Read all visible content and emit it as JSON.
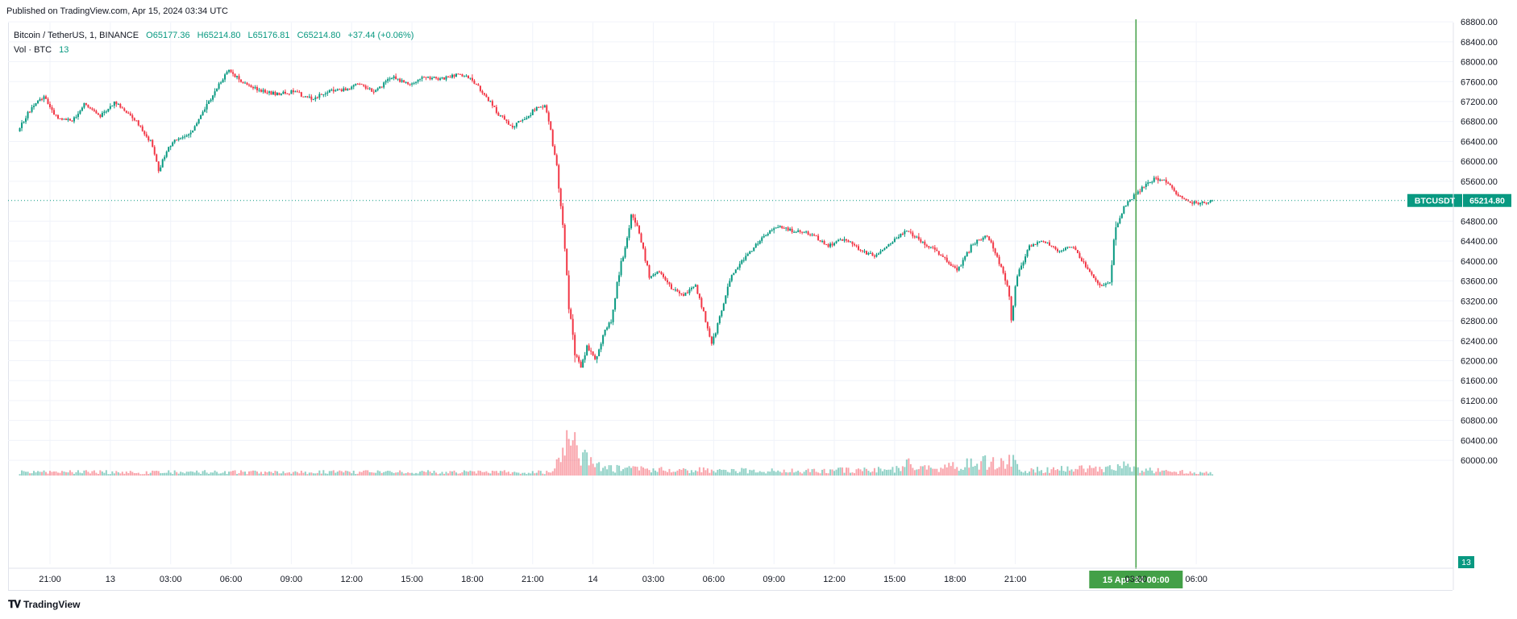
{
  "published": "Published on TradingView.com, Apr 15, 2024 03:34 UTC",
  "legend": {
    "symbol": "Bitcoin / TetherUS, 1, BINANCE",
    "open": "O65177.36",
    "high": "H65214.80",
    "low": "L65176.81",
    "close": "C65214.80",
    "change": "+37.44 (+0.06%)",
    "vol_label": "Vol · BTC",
    "vol_value": "13"
  },
  "price_tag": {
    "symbol": "BTCUSDT",
    "value": "65214.80"
  },
  "volume_tag": "13",
  "crosshair_label": "15 Apr '24   00:00",
  "footer": {
    "brand": "TradingView",
    "logo_icon": "tradingview-logo-icon"
  },
  "colors": {
    "up": "#089981",
    "down": "#f23645",
    "crosshair": "#43a047",
    "grid": "#f0f3fa"
  },
  "chart_data": {
    "type": "candlestick",
    "symbol": "Bitcoin / TetherUS, 1, BINANCE",
    "interval": "1 minute",
    "y_ticks": [
      "68800.00",
      "68400.00",
      "68000.00",
      "67600.00",
      "67200.00",
      "66800.00",
      "66400.00",
      "66000.00",
      "65600.00",
      "64800.00",
      "64400.00",
      "64000.00",
      "63600.00",
      "63200.00",
      "62800.00",
      "62400.00",
      "62000.00",
      "61600.00",
      "61200.00",
      "60800.00",
      "60400.00",
      "60000.00"
    ],
    "ylim": [
      59800,
      68850
    ],
    "x_ticks": [
      "21:00",
      "13",
      "03:00",
      "06:00",
      "09:00",
      "12:00",
      "15:00",
      "18:00",
      "21:00",
      "14",
      "03:00",
      "06:00",
      "09:00",
      "12:00",
      "15:00",
      "18:00",
      "21:00",
      "03:00",
      "06:00"
    ],
    "x_tick_hours": [
      0,
      3,
      6,
      9,
      12,
      15,
      18,
      21,
      24,
      27,
      30,
      33,
      36,
      39,
      42,
      45,
      48,
      54,
      57
    ],
    "price_path": [
      [
        -1.5,
        66600
      ],
      [
        -0.8,
        67100
      ],
      [
        -0.2,
        67300
      ],
      [
        0.4,
        66900
      ],
      [
        1.2,
        66800
      ],
      [
        1.8,
        67150
      ],
      [
        2.6,
        66900
      ],
      [
        3.3,
        67200
      ],
      [
        4.2,
        66900
      ],
      [
        5.1,
        66400
      ],
      [
        5.5,
        65800
      ],
      [
        6.0,
        66300
      ],
      [
        6.6,
        66500
      ],
      [
        7.2,
        66600
      ],
      [
        7.8,
        67050
      ],
      [
        8.4,
        67500
      ],
      [
        9.0,
        67850
      ],
      [
        9.6,
        67600
      ],
      [
        10.4,
        67450
      ],
      [
        11.3,
        67350
      ],
      [
        12.2,
        67400
      ],
      [
        13.1,
        67250
      ],
      [
        14.0,
        67400
      ],
      [
        14.8,
        67450
      ],
      [
        15.4,
        67550
      ],
      [
        16.3,
        67400
      ],
      [
        17.1,
        67700
      ],
      [
        17.9,
        67550
      ],
      [
        18.6,
        67700
      ],
      [
        19.5,
        67650
      ],
      [
        20.4,
        67750
      ],
      [
        20.9,
        67700
      ],
      [
        21.6,
        67400
      ],
      [
        22.4,
        66950
      ],
      [
        23.1,
        66700
      ],
      [
        23.8,
        66900
      ],
      [
        24.4,
        67100
      ],
      [
        24.7,
        67100
      ],
      [
        25.0,
        66600
      ],
      [
        25.3,
        65900
      ],
      [
        25.6,
        64800
      ],
      [
        25.9,
        63100
      ],
      [
        26.2,
        62200
      ],
      [
        26.5,
        61900
      ],
      [
        26.8,
        62300
      ],
      [
        27.2,
        62000
      ],
      [
        27.7,
        62600
      ],
      [
        28.0,
        62800
      ],
      [
        28.3,
        63600
      ],
      [
        28.7,
        64300
      ],
      [
        29.0,
        64900
      ],
      [
        29.4,
        64600
      ],
      [
        29.9,
        63700
      ],
      [
        30.3,
        63800
      ],
      [
        30.9,
        63500
      ],
      [
        31.5,
        63300
      ],
      [
        32.2,
        63500
      ],
      [
        32.7,
        62800
      ],
      [
        33.0,
        62300
      ],
      [
        33.4,
        62900
      ],
      [
        34.0,
        63700
      ],
      [
        34.7,
        64100
      ],
      [
        35.4,
        64400
      ],
      [
        36.2,
        64700
      ],
      [
        37.1,
        64600
      ],
      [
        38.0,
        64550
      ],
      [
        38.8,
        64300
      ],
      [
        39.6,
        64450
      ],
      [
        40.4,
        64200
      ],
      [
        41.2,
        64100
      ],
      [
        42.0,
        64400
      ],
      [
        42.7,
        64600
      ],
      [
        43.6,
        64350
      ],
      [
        44.5,
        64100
      ],
      [
        45.2,
        63800
      ],
      [
        46.0,
        64350
      ],
      [
        46.7,
        64500
      ],
      [
        47.2,
        64100
      ],
      [
        47.7,
        63500
      ],
      [
        47.9,
        62900
      ],
      [
        48.2,
        63700
      ],
      [
        48.8,
        64300
      ],
      [
        49.5,
        64400
      ],
      [
        50.3,
        64200
      ],
      [
        51.0,
        64300
      ],
      [
        51.7,
        63800
      ],
      [
        52.3,
        63500
      ],
      [
        52.8,
        63600
      ],
      [
        53.1,
        64700
      ],
      [
        53.5,
        65100
      ],
      [
        54.0,
        65300
      ],
      [
        54.5,
        65500
      ],
      [
        55.0,
        65650
      ],
      [
        55.5,
        65600
      ],
      [
        56.0,
        65400
      ],
      [
        56.6,
        65200
      ],
      [
        57.3,
        65150
      ],
      [
        57.8,
        65215
      ]
    ],
    "volume_path": [
      [
        -1.5,
        3
      ],
      [
        24.8,
        3
      ],
      [
        25.4,
        12
      ],
      [
        25.8,
        34
      ],
      [
        26.3,
        20
      ],
      [
        26.8,
        12
      ],
      [
        27.3,
        8
      ],
      [
        28.0,
        6
      ],
      [
        30.0,
        5
      ],
      [
        36.0,
        4
      ],
      [
        42.0,
        5
      ],
      [
        42.6,
        12
      ],
      [
        43.0,
        5
      ],
      [
        47.8,
        14
      ],
      [
        48.3,
        5
      ],
      [
        53.0,
        6
      ],
      [
        53.4,
        10
      ],
      [
        54.0,
        5
      ],
      [
        57.8,
        2
      ]
    ],
    "crosshair_hour": 54,
    "last_price": 65214.8
  }
}
